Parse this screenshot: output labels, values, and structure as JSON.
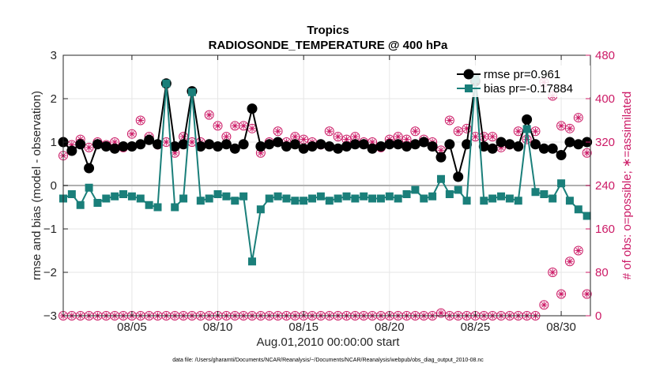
{
  "chart_data": {
    "type": "line",
    "title": "Tropics",
    "subtitle": "RADIOSONDE_TEMPERATURE @ 400 hPa",
    "xlabel": "Aug.01,2010 00:00:00 start",
    "ylabel_left": "rmse and bias (model - observation)",
    "ylabel_right": "# of obs: o=possible; ∗=assimilated",
    "footnote": "data file: /Users/gharamti/Documents/NCAR/Reanalysis/~/Documents/NCAR/Reanalysis/webpub/obs_diag_output_2010-08.nc",
    "xlim": [
      1,
      31.7
    ],
    "ylim_left": [
      -3,
      3
    ],
    "ylim_right": [
      0,
      480
    ],
    "x_ticks": [
      5,
      10,
      15,
      20,
      25,
      30
    ],
    "x_tick_labels": [
      "08/05",
      "08/10",
      "08/15",
      "08/20",
      "08/25",
      "08/30"
    ],
    "y_left_ticks": [
      -3,
      -2,
      -1,
      0,
      1,
      2,
      3
    ],
    "y_left_tick_labels": [
      "−3",
      "−2",
      "−1",
      "0",
      "1",
      "2",
      "3"
    ],
    "y_right_ticks": [
      0,
      80,
      160,
      240,
      320,
      400,
      480
    ],
    "y_right_tick_labels": [
      "0",
      "80",
      "160",
      "240",
      "320",
      "400",
      "480"
    ],
    "grid": true,
    "legend_position": "top-right",
    "colors": {
      "rmse": "#000000",
      "bias": "#1a7f7a",
      "obs": "#cc1a66",
      "zero_line": "#b0b0b0"
    },
    "x": [
      1.0,
      1.5,
      2.0,
      2.5,
      3.0,
      3.5,
      4.0,
      4.5,
      5.0,
      5.5,
      6.0,
      6.5,
      7.0,
      7.5,
      8.0,
      8.5,
      9.0,
      9.5,
      10.0,
      10.5,
      11.0,
      11.5,
      12.0,
      12.5,
      13.0,
      13.5,
      14.0,
      14.5,
      15.0,
      15.5,
      16.0,
      16.5,
      17.0,
      17.5,
      18.0,
      18.5,
      19.0,
      19.5,
      20.0,
      20.5,
      21.0,
      21.5,
      22.0,
      22.5,
      23.0,
      23.5,
      24.0,
      24.5,
      25.0,
      25.5,
      26.0,
      26.5,
      27.0,
      27.5,
      28.0,
      28.5,
      29.0,
      29.5,
      30.0,
      30.5,
      31.0,
      31.5
    ],
    "series": [
      {
        "name": "rmse",
        "legend_label": "rmse pr=0.961",
        "axis": "left",
        "values": [
          1.0,
          0.8,
          0.95,
          0.4,
          0.95,
          0.9,
          0.85,
          0.9,
          0.9,
          0.95,
          1.05,
          0.95,
          2.35,
          0.9,
          0.95,
          2.17,
          0.9,
          0.95,
          0.9,
          0.95,
          0.85,
          0.95,
          1.77,
          0.9,
          0.95,
          1.0,
          0.9,
          0.95,
          0.85,
          0.9,
          0.95,
          0.9,
          0.85,
          0.9,
          0.95,
          0.95,
          0.85,
          0.9,
          0.95,
          0.95,
          0.9,
          0.95,
          1.0,
          0.9,
          0.65,
          0.95,
          0.2,
          0.95,
          2.4,
          0.9,
          0.85,
          1.0,
          0.95,
          0.9,
          1.52,
          0.95,
          0.85,
          0.85,
          0.7,
          1.0,
          0.95,
          1.0
        ]
      },
      {
        "name": "bias",
        "legend_label": "bias pr=-0.17884",
        "axis": "left",
        "values": [
          -0.3,
          -0.2,
          -0.45,
          -0.05,
          -0.4,
          -0.3,
          -0.25,
          -0.2,
          -0.25,
          -0.3,
          -0.45,
          -0.5,
          2.35,
          -0.5,
          -0.3,
          2.15,
          -0.35,
          -0.3,
          -0.2,
          -0.25,
          -0.35,
          -0.25,
          -1.75,
          -0.55,
          -0.3,
          -0.25,
          -0.3,
          -0.35,
          -0.35,
          -0.3,
          -0.25,
          -0.35,
          -0.3,
          -0.25,
          -0.3,
          -0.25,
          -0.3,
          -0.3,
          -0.25,
          -0.3,
          -0.2,
          -0.1,
          -0.3,
          -0.25,
          0.15,
          -0.2,
          -0.1,
          -0.35,
          2.45,
          -0.35,
          -0.3,
          -0.25,
          -0.3,
          -0.35,
          1.3,
          -0.15,
          -0.2,
          -0.3,
          0.05,
          -0.35,
          -0.55,
          -0.7
        ]
      },
      {
        "name": "obs_possible",
        "legend_label": "",
        "axis": "right",
        "values": [
          295,
          315,
          325,
          310,
          320,
          315,
          320,
          310,
          335,
          360,
          330,
          315,
          320,
          300,
          330,
          320,
          320,
          370,
          350,
          330,
          350,
          350,
          345,
          300,
          320,
          340,
          320,
          330,
          325,
          320,
          315,
          340,
          330,
          325,
          330,
          320,
          320,
          310,
          325,
          330,
          325,
          340,
          325,
          320,
          305,
          360,
          340,
          345,
          330,
          330,
          330,
          310,
          315,
          340,
          325,
          340,
          430,
          405,
          350,
          345,
          365,
          300
        ]
      },
      {
        "name": "obs_assimilated",
        "legend_label": "",
        "axis": "right",
        "values": [
          0,
          0,
          0,
          0,
          0,
          0,
          0,
          0,
          0,
          0,
          0,
          0,
          0,
          0,
          0,
          0,
          0,
          0,
          0,
          0,
          0,
          0,
          0,
          0,
          0,
          0,
          0,
          0,
          0,
          0,
          0,
          0,
          0,
          0,
          0,
          0,
          0,
          0,
          0,
          0,
          0,
          0,
          0,
          0,
          5,
          0,
          0,
          0,
          0,
          0,
          0,
          0,
          0,
          0,
          0,
          0,
          20,
          80,
          40,
          100,
          120,
          40
        ]
      }
    ]
  }
}
